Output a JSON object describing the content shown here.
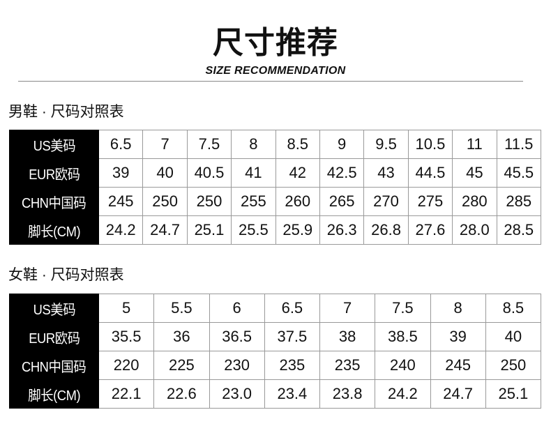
{
  "header": {
    "title": "尺寸推荐",
    "subtitle": "SIZE RECOMMENDATION"
  },
  "men": {
    "heading": "男鞋 · 尺码对照表",
    "rows": [
      {
        "label": "US美码",
        "values": [
          "6.5",
          "7",
          "7.5",
          "8",
          "8.5",
          "9",
          "9.5",
          "10.5",
          "11",
          "11.5"
        ]
      },
      {
        "label": "EUR欧码",
        "values": [
          "39",
          "40",
          "40.5",
          "41",
          "42",
          "42.5",
          "43",
          "44.5",
          "45",
          "45.5"
        ]
      },
      {
        "label": "CHN中国码",
        "values": [
          "245",
          "250",
          "250",
          "255",
          "260",
          "265",
          "270",
          "275",
          "280",
          "285"
        ]
      },
      {
        "label": "脚长(CM)",
        "values": [
          "24.2",
          "24.7",
          "25.1",
          "25.5",
          "25.9",
          "26.3",
          "26.8",
          "27.6",
          "28.0",
          "28.5"
        ]
      }
    ]
  },
  "women": {
    "heading": "女鞋 · 尺码对照表",
    "rows": [
      {
        "label": "US美码",
        "values": [
          "5",
          "5.5",
          "6",
          "6.5",
          "7",
          "7.5",
          "8",
          "8.5"
        ]
      },
      {
        "label": "EUR欧码",
        "values": [
          "35.5",
          "36",
          "36.5",
          "37.5",
          "38",
          "38.5",
          "39",
          "40"
        ]
      },
      {
        "label": "CHN中国码",
        "values": [
          "220",
          "225",
          "230",
          "235",
          "235",
          "240",
          "245",
          "250"
        ]
      },
      {
        "label": "脚长(CM)",
        "values": [
          "22.1",
          "22.6",
          "23.0",
          "23.4",
          "23.8",
          "24.2",
          "24.7",
          "25.1"
        ]
      }
    ]
  }
}
